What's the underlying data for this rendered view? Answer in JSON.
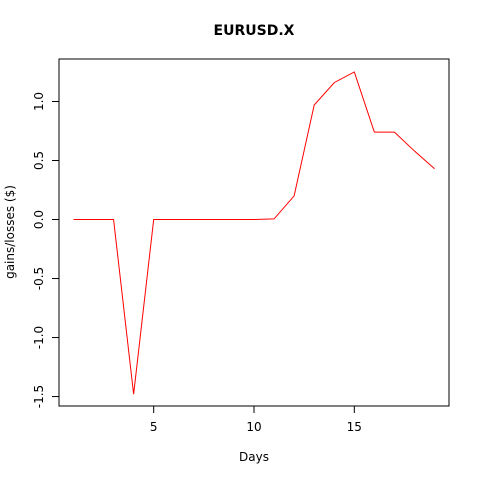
{
  "chart_data": {
    "type": "line",
    "title": "EURUSD.X",
    "xlabel": "Days",
    "ylabel": "gains/losses ($)",
    "xlim": [
      0.28,
      19.72
    ],
    "ylim": [
      -1.58,
      1.36
    ],
    "x_ticks": [
      5,
      10,
      15
    ],
    "y_ticks": [
      -1.5,
      -1.0,
      -0.5,
      0.0,
      0.5,
      1.0
    ],
    "y_tick_labels": [
      "-1.5",
      "-1.0",
      "-0.5",
      "0.0",
      "0.5",
      "1.0"
    ],
    "grid": false,
    "line_color": "#ff0000",
    "series": [
      {
        "x": [
          1,
          2,
          3,
          4,
          5,
          6,
          7,
          8,
          9,
          10,
          11,
          12,
          13,
          14,
          15,
          16,
          17,
          18,
          19
        ],
        "values": [
          0.0,
          0.0,
          0.0,
          -1.48,
          0.0,
          0.0,
          0.0,
          0.0,
          0.0,
          0.0,
          0.005,
          0.2,
          0.97,
          1.16,
          1.25,
          0.74,
          0.74,
          0.58,
          0.43
        ]
      }
    ]
  }
}
